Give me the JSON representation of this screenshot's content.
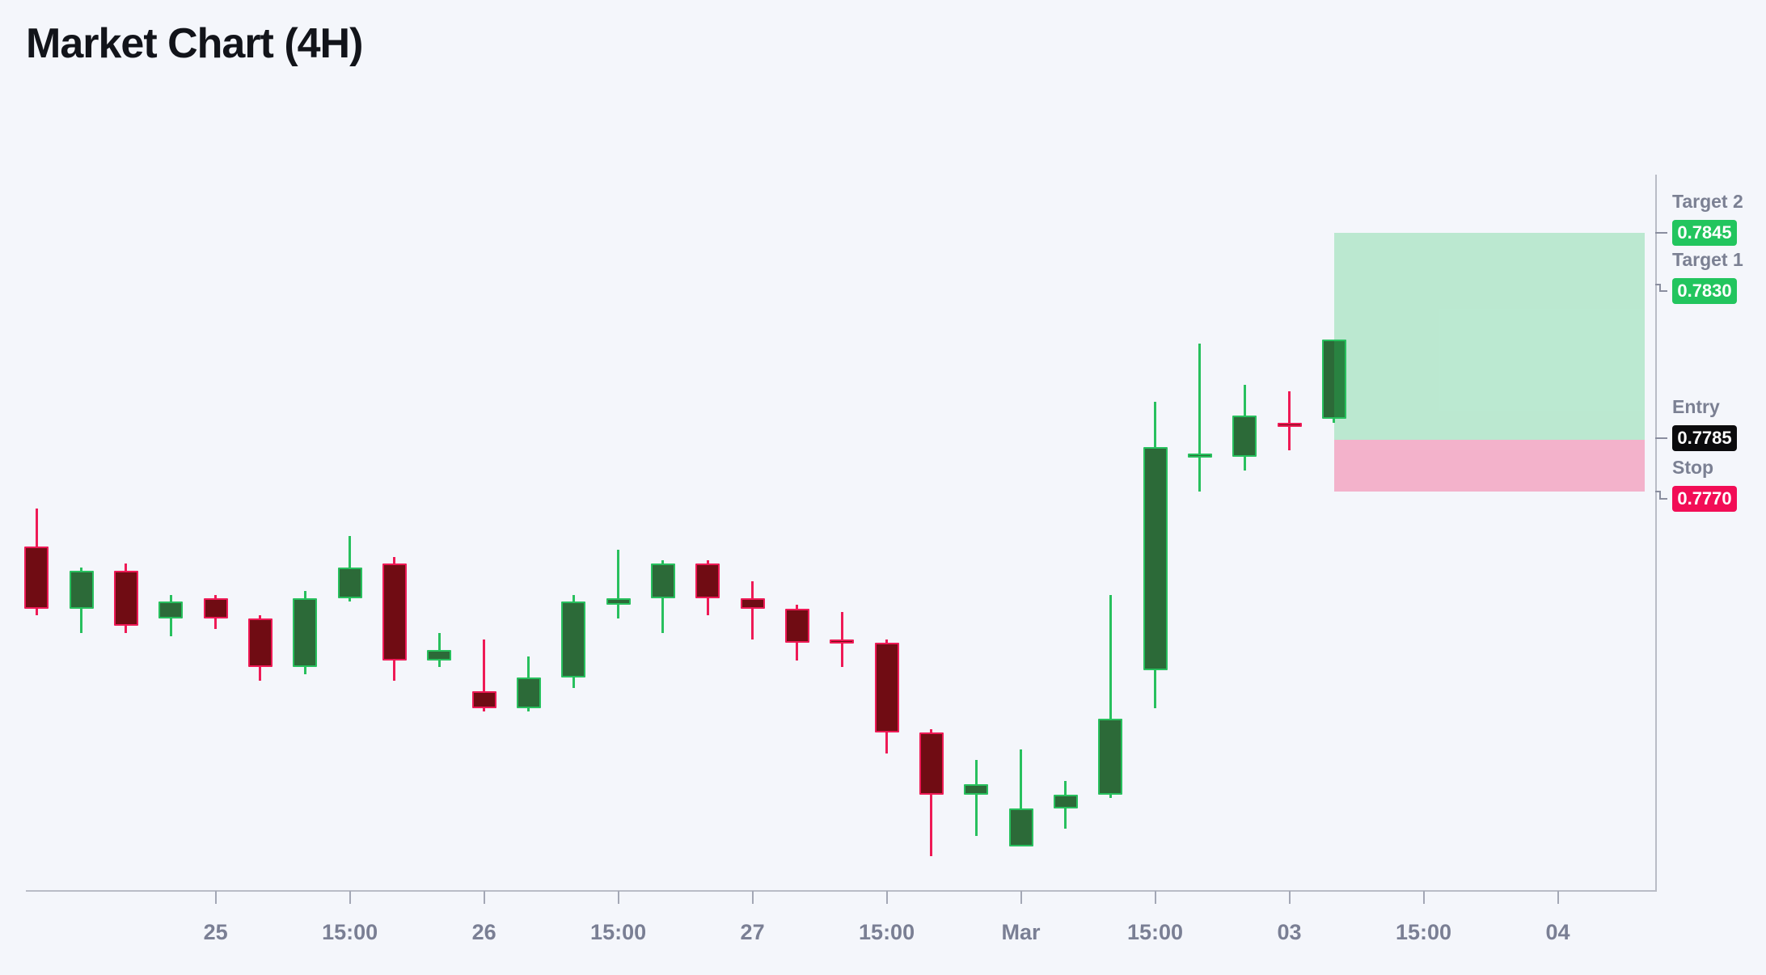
{
  "title": "Market Chart (4H)",
  "colors": {
    "background": "#f4f6fb",
    "title_text": "#12141a",
    "axis_line": "#b9bcc6",
    "tick_mark": "#a3a7b5",
    "tick_label": "#7a7f94",
    "panel_label": "#7b8093",
    "connector": "#8a8e9f",
    "up_border": "#28c05e",
    "up_fill": "#2c6a38",
    "down_border": "#ee1a56",
    "down_fill": "#700c13",
    "profit_zone": "rgba(34,197,94,0.27)",
    "loss_zone": "rgba(242,13,86,0.29)",
    "badge_target_bg": "#22c55e",
    "badge_entry_bg": "#0b0b0d",
    "badge_stop_bg": "#f20d56",
    "badge_text": "#ffffff"
  },
  "chart_data": {
    "type": "candlestick",
    "title": "Market Chart (4H)",
    "timeframe": "4H",
    "grid": false,
    "ylim": [
      0.7654,
      0.7862
    ],
    "x_tick_labels": [
      {
        "slot": 4,
        "label": "25"
      },
      {
        "slot": 7,
        "label": "15:00"
      },
      {
        "slot": 10,
        "label": "26"
      },
      {
        "slot": 13,
        "label": "15:00"
      },
      {
        "slot": 16,
        "label": "27"
      },
      {
        "slot": 19,
        "label": "15:00"
      },
      {
        "slot": 22,
        "label": "Mar"
      },
      {
        "slot": 25,
        "label": "15:00"
      },
      {
        "slot": 28,
        "label": "03"
      },
      {
        "slot": 31,
        "label": "15:00"
      },
      {
        "slot": 34,
        "label": "04"
      }
    ],
    "candles": [
      {
        "o": 0.7754,
        "h": 0.7765,
        "l": 0.7734,
        "c": 0.7736
      },
      {
        "o": 0.7736,
        "h": 0.7748,
        "l": 0.7729,
        "c": 0.7747
      },
      {
        "o": 0.7747,
        "h": 0.7749,
        "l": 0.7729,
        "c": 0.7731
      },
      {
        "o": 0.7733,
        "h": 0.774,
        "l": 0.7728,
        "c": 0.7738
      },
      {
        "o": 0.7739,
        "h": 0.774,
        "l": 0.773,
        "c": 0.7733
      },
      {
        "o": 0.7733,
        "h": 0.7734,
        "l": 0.7715,
        "c": 0.7719
      },
      {
        "o": 0.7719,
        "h": 0.7741,
        "l": 0.7717,
        "c": 0.7739
      },
      {
        "o": 0.7739,
        "h": 0.7757,
        "l": 0.7738,
        "c": 0.7748
      },
      {
        "o": 0.7749,
        "h": 0.7751,
        "l": 0.7715,
        "c": 0.7721
      },
      {
        "o": 0.7721,
        "h": 0.7729,
        "l": 0.7719,
        "c": 0.7724
      },
      {
        "o": 0.7712,
        "h": 0.7727,
        "l": 0.7706,
        "c": 0.7707
      },
      {
        "o": 0.7707,
        "h": 0.7722,
        "l": 0.7706,
        "c": 0.7716
      },
      {
        "o": 0.7716,
        "h": 0.774,
        "l": 0.7713,
        "c": 0.7738
      },
      {
        "o": 0.7737,
        "h": 0.7753,
        "l": 0.7733,
        "c": 0.7739
      },
      {
        "o": 0.7739,
        "h": 0.775,
        "l": 0.7729,
        "c": 0.7749
      },
      {
        "o": 0.7749,
        "h": 0.775,
        "l": 0.7734,
        "c": 0.7739
      },
      {
        "o": 0.7739,
        "h": 0.7744,
        "l": 0.7727,
        "c": 0.7736
      },
      {
        "o": 0.7736,
        "h": 0.7737,
        "l": 0.7721,
        "c": 0.7726
      },
      {
        "o": 0.7727,
        "h": 0.7735,
        "l": 0.7719,
        "c": 0.7726
      },
      {
        "o": 0.7726,
        "h": 0.7727,
        "l": 0.7694,
        "c": 0.77
      },
      {
        "o": 0.77,
        "h": 0.7701,
        "l": 0.7664,
        "c": 0.7682
      },
      {
        "o": 0.7682,
        "h": 0.7692,
        "l": 0.767,
        "c": 0.7685
      },
      {
        "o": 0.7667,
        "h": 0.7695,
        "l": 0.7667,
        "c": 0.7678
      },
      {
        "o": 0.7678,
        "h": 0.7686,
        "l": 0.7672,
        "c": 0.7682
      },
      {
        "o": 0.7682,
        "h": 0.774,
        "l": 0.7681,
        "c": 0.7704
      },
      {
        "o": 0.7718,
        "h": 0.7796,
        "l": 0.7707,
        "c": 0.7783
      },
      {
        "o": 0.778,
        "h": 0.7813,
        "l": 0.777,
        "c": 0.7781
      },
      {
        "o": 0.778,
        "h": 0.7801,
        "l": 0.7776,
        "c": 0.7792
      },
      {
        "o": 0.779,
        "h": 0.7799,
        "l": 0.7782,
        "c": 0.7789
      },
      {
        "o": 0.7791,
        "h": 0.7814,
        "l": 0.779,
        "c": 0.7814
      }
    ],
    "zones": [
      {
        "id": "profit",
        "from_price": 0.7845,
        "to_price": 0.7785,
        "start_slot": 29
      },
      {
        "id": "loss",
        "from_price": 0.7785,
        "to_price": 0.777,
        "start_slot": 29
      }
    ],
    "levels": [
      {
        "id": "target2",
        "label": "Target 2",
        "value": "0.7845",
        "price": 0.7845,
        "badge": "green",
        "connector": "straight",
        "badge_offset": 0
      },
      {
        "id": "target1",
        "label": "Target 1",
        "value": "0.7830",
        "price": 0.783,
        "badge": "green",
        "connector": "step",
        "badge_offset": 8
      },
      {
        "id": "entry",
        "label": "Entry",
        "value": "0.7785",
        "price": 0.7785,
        "badge": "black",
        "connector": "straight",
        "badge_offset": -2
      },
      {
        "id": "stop",
        "label": "Stop",
        "value": "0.7770",
        "price": 0.777,
        "badge": "red",
        "connector": "step",
        "badge_offset": 9
      }
    ]
  }
}
